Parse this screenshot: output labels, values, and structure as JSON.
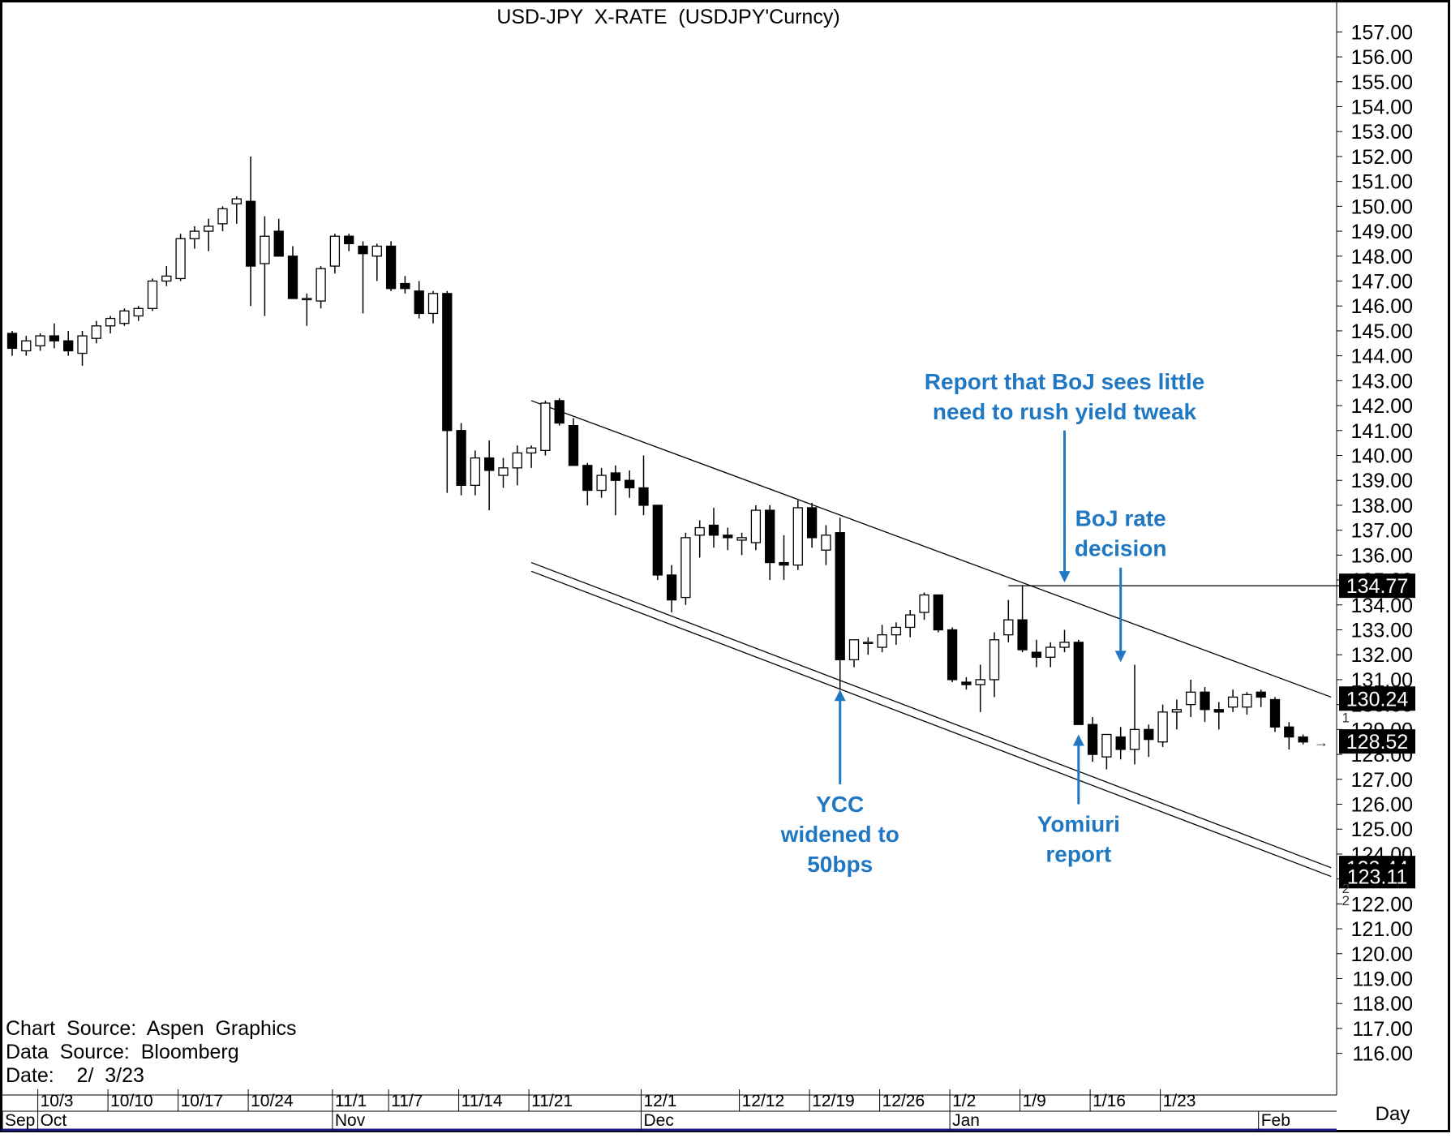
{
  "chart_data": {
    "type": "candlestick",
    "title": "USD-JPY  X-RATE  (USDJPY'Curncy)",
    "period_label": "Day",
    "source_lines": [
      "Chart  Source:  Aspen  Graphics",
      "Data  Source:  Bloomberg",
      "Date:    2/  3/23"
    ],
    "ylim": [
      115.5,
      157.5
    ],
    "y_ticks": [
      "157.00",
      "156.00",
      "155.00",
      "154.00",
      "153.00",
      "152.00",
      "151.00",
      "150.00",
      "149.00",
      "148.00",
      "147.00",
      "146.00",
      "145.00",
      "144.00",
      "143.00",
      "142.00",
      "141.00",
      "140.00",
      "139.00",
      "138.00",
      "137.00",
      "136.00",
      "135.00",
      "134.00",
      "133.00",
      "132.00",
      "131.00",
      "130.00",
      "129.00",
      "128.00",
      "127.00",
      "126.00",
      "125.00",
      "124.00",
      "123.00",
      "122.00",
      "121.00",
      "120.00",
      "119.00",
      "118.00",
      "117.00",
      "116.00"
    ],
    "x_week_ticks": [
      {
        "label": "10/3",
        "i": 2
      },
      {
        "label": "10/10",
        "i": 7
      },
      {
        "label": "10/17",
        "i": 12
      },
      {
        "label": "10/24",
        "i": 17
      },
      {
        "label": "11/1",
        "i": 23
      },
      {
        "label": "11/7",
        "i": 27
      },
      {
        "label": "11/14",
        "i": 32
      },
      {
        "label": "11/21",
        "i": 37
      },
      {
        "label": "12/1",
        "i": 45
      },
      {
        "label": "12/12",
        "i": 52
      },
      {
        "label": "12/19",
        "i": 57
      },
      {
        "label": "12/26",
        "i": 62
      },
      {
        "label": "1/2",
        "i": 67
      },
      {
        "label": "1/9",
        "i": 72
      },
      {
        "label": "1/16",
        "i": 77
      },
      {
        "label": "1/23",
        "i": 82
      }
    ],
    "x_month_ticks": [
      {
        "label": "Sep",
        "i": -2
      },
      {
        "label": "Oct",
        "i": 2
      },
      {
        "label": "Nov",
        "i": 23
      },
      {
        "label": "Dec",
        "i": 45
      },
      {
        "label": "Jan",
        "i": 67
      },
      {
        "label": "Feb",
        "i": 89
      }
    ],
    "candles": [
      {
        "o": 144.9,
        "h": 145.0,
        "l": 144.0,
        "c": 144.3
      },
      {
        "o": 144.2,
        "h": 144.8,
        "l": 144.0,
        "c": 144.6
      },
      {
        "o": 144.4,
        "h": 144.9,
        "l": 144.2,
        "c": 144.8
      },
      {
        "o": 144.8,
        "h": 145.3,
        "l": 144.3,
        "c": 144.6
      },
      {
        "o": 144.6,
        "h": 145.0,
        "l": 144.0,
        "c": 144.2
      },
      {
        "o": 144.1,
        "h": 145.0,
        "l": 143.6,
        "c": 144.8
      },
      {
        "o": 144.7,
        "h": 145.4,
        "l": 144.5,
        "c": 145.2
      },
      {
        "o": 145.2,
        "h": 145.6,
        "l": 144.9,
        "c": 145.5
      },
      {
        "o": 145.3,
        "h": 145.9,
        "l": 145.2,
        "c": 145.8
      },
      {
        "o": 145.6,
        "h": 146.0,
        "l": 145.4,
        "c": 145.9
      },
      {
        "o": 145.9,
        "h": 147.1,
        "l": 145.8,
        "c": 147.0
      },
      {
        "o": 147.0,
        "h": 147.6,
        "l": 146.8,
        "c": 147.2
      },
      {
        "o": 147.1,
        "h": 148.9,
        "l": 147.0,
        "c": 148.7
      },
      {
        "o": 148.7,
        "h": 149.2,
        "l": 148.3,
        "c": 149.0
      },
      {
        "o": 149.0,
        "h": 149.5,
        "l": 148.2,
        "c": 149.2
      },
      {
        "o": 149.3,
        "h": 150.0,
        "l": 149.0,
        "c": 149.9
      },
      {
        "o": 150.1,
        "h": 150.4,
        "l": 149.3,
        "c": 150.3
      },
      {
        "o": 150.2,
        "h": 152.0,
        "l": 146.0,
        "c": 147.6
      },
      {
        "o": 147.7,
        "h": 149.6,
        "l": 145.6,
        "c": 148.8
      },
      {
        "o": 149.0,
        "h": 149.5,
        "l": 148.1,
        "c": 148.0
      },
      {
        "o": 148.0,
        "h": 148.4,
        "l": 146.3,
        "c": 146.3
      },
      {
        "o": 146.3,
        "h": 146.5,
        "l": 145.2,
        "c": 146.3
      },
      {
        "o": 146.2,
        "h": 147.6,
        "l": 145.9,
        "c": 147.5
      },
      {
        "o": 147.6,
        "h": 148.9,
        "l": 147.3,
        "c": 148.8
      },
      {
        "o": 148.8,
        "h": 148.9,
        "l": 148.2,
        "c": 148.5
      },
      {
        "o": 148.4,
        "h": 148.6,
        "l": 145.7,
        "c": 148.1
      },
      {
        "o": 148.0,
        "h": 148.5,
        "l": 147.0,
        "c": 148.4
      },
      {
        "o": 148.4,
        "h": 148.6,
        "l": 146.6,
        "c": 146.7
      },
      {
        "o": 146.9,
        "h": 147.2,
        "l": 146.5,
        "c": 146.7
      },
      {
        "o": 146.6,
        "h": 147.0,
        "l": 145.5,
        "c": 145.7
      },
      {
        "o": 145.7,
        "h": 146.6,
        "l": 145.3,
        "c": 146.5
      },
      {
        "o": 146.5,
        "h": 146.6,
        "l": 138.5,
        "c": 141.0
      },
      {
        "o": 141.0,
        "h": 141.3,
        "l": 138.4,
        "c": 138.8
      },
      {
        "o": 138.8,
        "h": 140.2,
        "l": 138.4,
        "c": 139.9
      },
      {
        "o": 139.9,
        "h": 140.6,
        "l": 137.8,
        "c": 139.4
      },
      {
        "o": 139.2,
        "h": 139.9,
        "l": 138.7,
        "c": 139.5
      },
      {
        "o": 139.5,
        "h": 140.4,
        "l": 138.8,
        "c": 140.1
      },
      {
        "o": 140.1,
        "h": 140.4,
        "l": 139.5,
        "c": 140.3
      },
      {
        "o": 140.2,
        "h": 142.2,
        "l": 140.0,
        "c": 142.1
      },
      {
        "o": 142.2,
        "h": 142.3,
        "l": 141.2,
        "c": 141.3
      },
      {
        "o": 141.2,
        "h": 141.5,
        "l": 139.6,
        "c": 139.6
      },
      {
        "o": 139.6,
        "h": 139.7,
        "l": 138.0,
        "c": 138.6
      },
      {
        "o": 138.6,
        "h": 139.5,
        "l": 138.3,
        "c": 139.2
      },
      {
        "o": 139.3,
        "h": 139.6,
        "l": 137.6,
        "c": 139.0
      },
      {
        "o": 139.0,
        "h": 139.4,
        "l": 138.3,
        "c": 138.7
      },
      {
        "o": 138.7,
        "h": 140.0,
        "l": 137.6,
        "c": 138.0
      },
      {
        "o": 138.0,
        "h": 138.0,
        "l": 135.0,
        "c": 135.2
      },
      {
        "o": 135.2,
        "h": 135.6,
        "l": 133.7,
        "c": 134.2
      },
      {
        "o": 134.3,
        "h": 136.9,
        "l": 134.0,
        "c": 136.7
      },
      {
        "o": 136.8,
        "h": 137.4,
        "l": 135.9,
        "c": 137.1
      },
      {
        "o": 137.2,
        "h": 137.9,
        "l": 136.3,
        "c": 136.8
      },
      {
        "o": 136.8,
        "h": 137.1,
        "l": 136.2,
        "c": 136.7
      },
      {
        "o": 136.6,
        "h": 136.9,
        "l": 136.0,
        "c": 136.7
      },
      {
        "o": 136.5,
        "h": 138.0,
        "l": 136.2,
        "c": 137.8
      },
      {
        "o": 137.8,
        "h": 138.0,
        "l": 135.0,
        "c": 135.7
      },
      {
        "o": 135.7,
        "h": 136.8,
        "l": 135.0,
        "c": 135.6
      },
      {
        "o": 135.6,
        "h": 138.2,
        "l": 135.4,
        "c": 137.9
      },
      {
        "o": 137.9,
        "h": 138.1,
        "l": 136.3,
        "c": 136.7
      },
      {
        "o": 136.2,
        "h": 137.2,
        "l": 135.6,
        "c": 136.8
      },
      {
        "o": 136.9,
        "h": 137.5,
        "l": 130.6,
        "c": 131.8
      },
      {
        "o": 131.8,
        "h": 132.6,
        "l": 131.5,
        "c": 132.6
      },
      {
        "o": 132.5,
        "h": 132.7,
        "l": 132.0,
        "c": 132.5
      },
      {
        "o": 132.3,
        "h": 133.2,
        "l": 132.1,
        "c": 132.8
      },
      {
        "o": 132.8,
        "h": 133.3,
        "l": 132.4,
        "c": 133.1
      },
      {
        "o": 133.1,
        "h": 133.8,
        "l": 132.7,
        "c": 133.6
      },
      {
        "o": 133.7,
        "h": 134.5,
        "l": 133.4,
        "c": 134.4
      },
      {
        "o": 134.4,
        "h": 134.4,
        "l": 132.9,
        "c": 133.0
      },
      {
        "o": 133.0,
        "h": 133.1,
        "l": 130.9,
        "c": 131.0
      },
      {
        "o": 130.9,
        "h": 131.1,
        "l": 130.6,
        "c": 130.8
      },
      {
        "o": 130.8,
        "h": 131.6,
        "l": 129.7,
        "c": 131.0
      },
      {
        "o": 131.0,
        "h": 132.9,
        "l": 130.3,
        "c": 132.6
      },
      {
        "o": 132.8,
        "h": 134.2,
        "l": 132.5,
        "c": 133.4
      },
      {
        "o": 133.4,
        "h": 134.8,
        "l": 132.1,
        "c": 132.2
      },
      {
        "o": 132.1,
        "h": 132.6,
        "l": 131.5,
        "c": 131.9
      },
      {
        "o": 131.9,
        "h": 132.5,
        "l": 131.5,
        "c": 132.3
      },
      {
        "o": 132.3,
        "h": 133.0,
        "l": 132.1,
        "c": 132.5
      },
      {
        "o": 132.5,
        "h": 132.6,
        "l": 129.2,
        "c": 129.2
      },
      {
        "o": 129.2,
        "h": 129.5,
        "l": 127.7,
        "c": 128.0
      },
      {
        "o": 127.9,
        "h": 128.8,
        "l": 127.4,
        "c": 128.8
      },
      {
        "o": 128.7,
        "h": 129.1,
        "l": 127.8,
        "c": 128.2
      },
      {
        "o": 128.2,
        "h": 131.6,
        "l": 127.6,
        "c": 129.0
      },
      {
        "o": 129.0,
        "h": 129.2,
        "l": 127.9,
        "c": 128.6
      },
      {
        "o": 128.5,
        "h": 130.0,
        "l": 128.3,
        "c": 129.7
      },
      {
        "o": 129.7,
        "h": 130.2,
        "l": 129.0,
        "c": 129.8
      },
      {
        "o": 130.0,
        "h": 131.0,
        "l": 129.5,
        "c": 130.5
      },
      {
        "o": 130.5,
        "h": 130.7,
        "l": 129.3,
        "c": 129.8
      },
      {
        "o": 129.8,
        "h": 130.1,
        "l": 129.0,
        "c": 129.7
      },
      {
        "o": 129.9,
        "h": 130.6,
        "l": 129.7,
        "c": 130.3
      },
      {
        "o": 129.9,
        "h": 130.5,
        "l": 129.6,
        "c": 130.4
      },
      {
        "o": 130.5,
        "h": 130.6,
        "l": 129.9,
        "c": 130.3
      },
      {
        "o": 130.2,
        "h": 130.3,
        "l": 128.9,
        "c": 129.1
      },
      {
        "o": 129.1,
        "h": 129.3,
        "l": 128.2,
        "c": 128.7
      },
      {
        "o": 128.7,
        "h": 128.8,
        "l": 128.4,
        "c": 128.5
      }
    ],
    "trendlines": [
      {
        "name": "upper-trendline",
        "points": [
          {
            "i": 37,
            "v": 142.2
          },
          {
            "i": 94,
            "v": 130.3
          }
        ]
      },
      {
        "name": "lower-channel-line-1",
        "points": [
          {
            "i": 37,
            "v": 135.7
          },
          {
            "i": 94,
            "v": 123.45
          }
        ]
      },
      {
        "name": "lower-channel-line-2",
        "points": [
          {
            "i": 37,
            "v": 135.35
          },
          {
            "i": 94,
            "v": 123.1
          }
        ]
      }
    ],
    "horizontal_line": {
      "from_i": 71,
      "to_i": 97,
      "v": 134.77
    },
    "price_markers": [
      {
        "label": "134.77",
        "v": 134.77
      },
      {
        "label": "130.24",
        "v": 130.24
      },
      {
        "label": "128.52",
        "v": 128.52
      },
      {
        "label": "123.44",
        "v": 123.44
      },
      {
        "label": "123.11",
        "v": 123.11
      }
    ],
    "line_tags": [
      {
        "label": "1",
        "i": 94,
        "v": 129.55
      },
      {
        "label": "2",
        "i": 94,
        "v": 122.7
      },
      {
        "label": "2",
        "i": 94,
        "v": 122.2
      }
    ],
    "current_arrow": "→",
    "annotations": [
      {
        "lines": [
          "Report that BoJ sees little",
          "need to rush yield tweak"
        ],
        "i": 75,
        "arrow_from": 141.0,
        "arrow_to": 134.9,
        "dir": "down"
      },
      {
        "lines": [
          "BoJ rate",
          "decision"
        ],
        "i": 79,
        "arrow_from": 135.5,
        "arrow_to": 131.7,
        "dir": "down"
      },
      {
        "lines": [
          "YCC",
          "widened to",
          "50bps"
        ],
        "i": 59,
        "arrow_from": 126.8,
        "arrow_to": 130.6,
        "dir": "up"
      },
      {
        "lines": [
          "Yomiuri",
          "report"
        ],
        "i": 76,
        "arrow_from": 126.0,
        "arrow_to": 128.8,
        "dir": "up"
      }
    ]
  }
}
